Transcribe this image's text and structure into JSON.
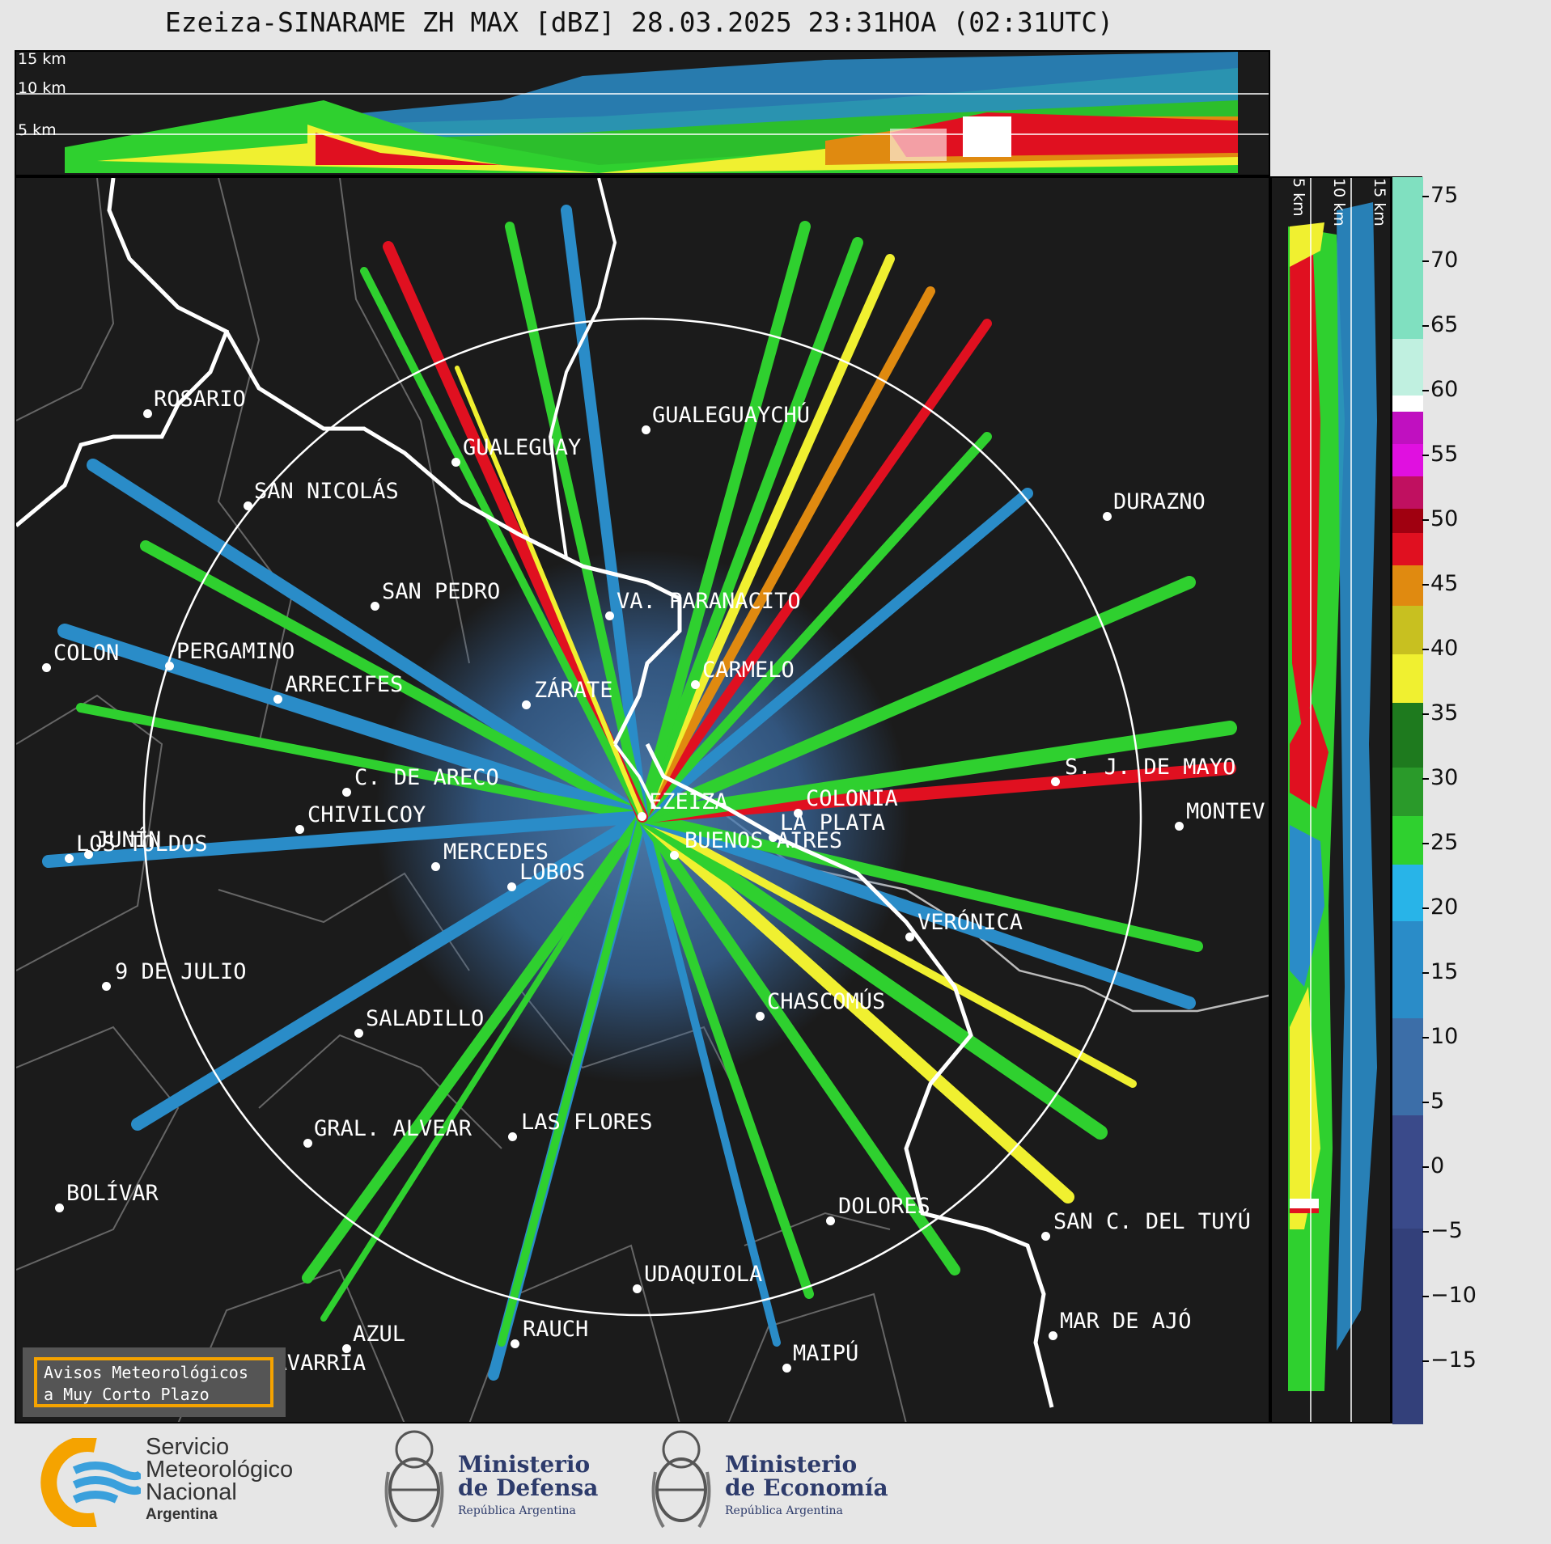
{
  "title": "Ezeiza-SINARAME ZH MAX [dBZ] 28.03.2025 23:31HOA (02:31UTC)",
  "top_panel": {
    "km_labels": [
      "15 km",
      "10 km",
      "5 km"
    ]
  },
  "side_panel": {
    "km_labels": [
      "5 km",
      "10 km",
      "15 km"
    ]
  },
  "cities": [
    {
      "name": "ROSARIO"
    },
    {
      "name": "GUALEGUAYCHÚ"
    },
    {
      "name": "GUALEGUAY"
    },
    {
      "name": "SAN NICOLÁS"
    },
    {
      "name": "DURAZNO"
    },
    {
      "name": "SAN PEDRO"
    },
    {
      "name": "VA. PARANACITO"
    },
    {
      "name": "COLON"
    },
    {
      "name": "PERGAMINO"
    },
    {
      "name": "CARMELO"
    },
    {
      "name": "ARRECIFES"
    },
    {
      "name": "ZÁRATE"
    },
    {
      "name": "S. J. DE MAYO"
    },
    {
      "name": "C. DE ARECO"
    },
    {
      "name": "COLONIA"
    },
    {
      "name": "JUNÍN"
    },
    {
      "name": "BUENOS AIRES"
    },
    {
      "name": "MERCEDES"
    },
    {
      "name": "EZEIZA"
    },
    {
      "name": "MONTEV"
    },
    {
      "name": "CHIVILCOY"
    },
    {
      "name": "LA PLATA"
    },
    {
      "name": "LOS TOLDOS"
    },
    {
      "name": "LOBOS"
    },
    {
      "name": "VERÓNICA"
    },
    {
      "name": "9 DE JULIO"
    },
    {
      "name": "CHASCOMÚS"
    },
    {
      "name": "SALADILLO"
    },
    {
      "name": "GRAL. ALVEAR"
    },
    {
      "name": "LAS FLORES"
    },
    {
      "name": "BOLÍVAR"
    },
    {
      "name": "DOLORES"
    },
    {
      "name": "SAN C. DEL TUYÚ"
    },
    {
      "name": "UDAQUIOLA"
    },
    {
      "name": "MAR DE AJÓ"
    },
    {
      "name": "AZUL"
    },
    {
      "name": "RAUCH"
    },
    {
      "name": "MAIPÚ"
    },
    {
      "name": "OLAVARRÍA"
    }
  ],
  "avisos": {
    "line1": "Avisos Meteorológicos",
    "line2": "a Muy Corto Plazo"
  },
  "colorbar": {
    "unit": "dBZ",
    "ticks": [
      "75",
      "70",
      "65",
      "60",
      "55",
      "50",
      "45",
      "40",
      "35",
      "30",
      "25",
      "20",
      "15",
      "10",
      "5",
      "0",
      "−5",
      "−10",
      "−15"
    ],
    "colors": {
      "under_0": "#3a4a8a",
      "blue": "#2a8cc8",
      "light_blue": "#28b4e8",
      "green": "#2fd02f",
      "dark_green": "#1e7a1e",
      "yellow": "#f0f030",
      "orange": "#e08a10",
      "red": "#e01020",
      "dark_red": "#a00010",
      "magenta": "#e010e0",
      "white": "#ffffff",
      "teal": "#80e0c0"
    }
  },
  "footer": {
    "smn": {
      "line1": "Servicio",
      "line2": "Meteorológico",
      "line3": "Nacional",
      "line4": "Argentina"
    },
    "defensa": {
      "line1": "Ministerio",
      "line2": "de Defensa",
      "line3": "República Argentina"
    },
    "economia": {
      "line1": "Ministerio",
      "line2": "de Economía",
      "line3": "República Argentina"
    }
  }
}
